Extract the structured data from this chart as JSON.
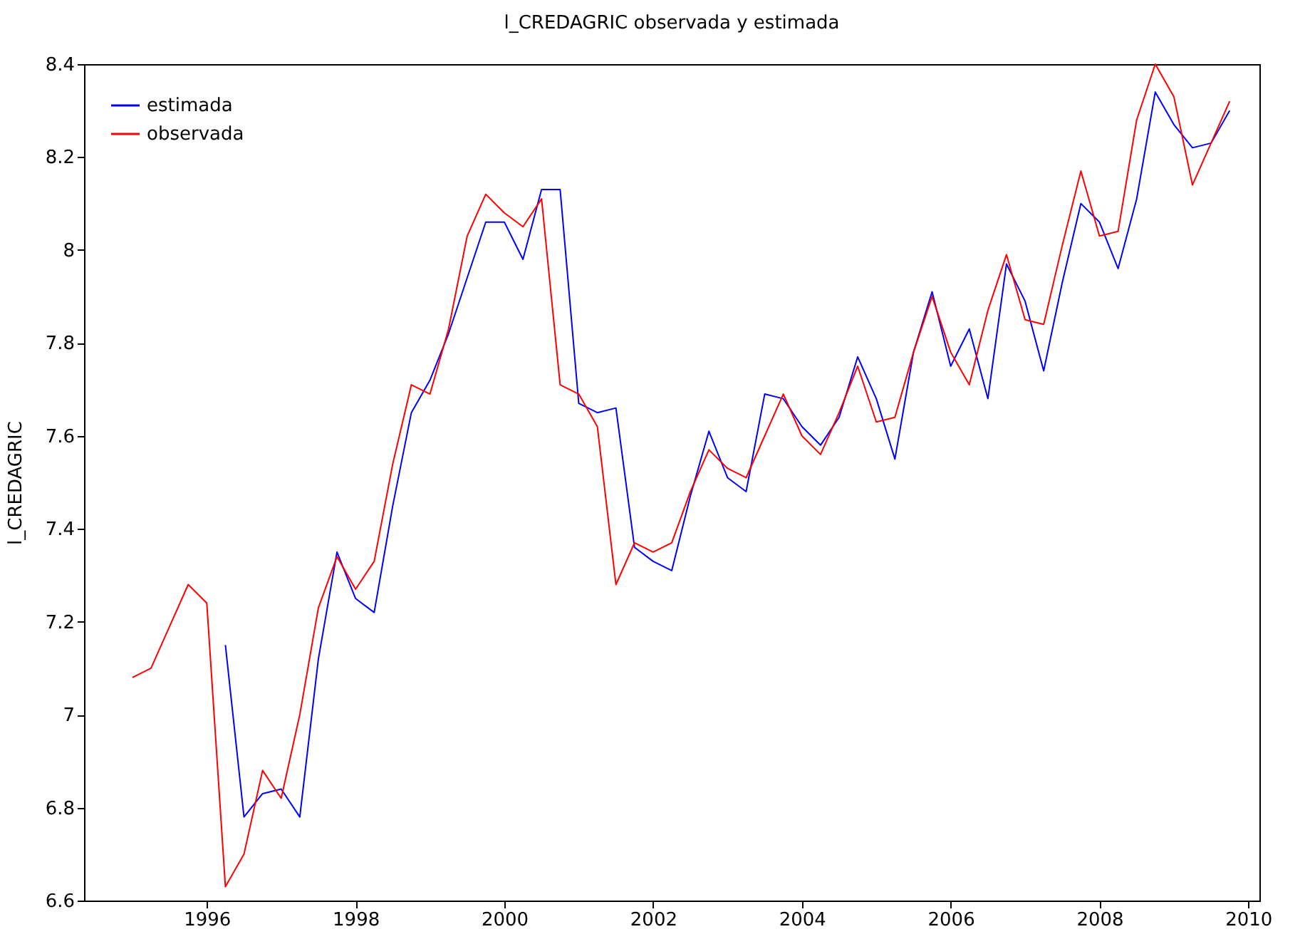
{
  "chart_data": {
    "type": "line",
    "title": "l_CREDAGRIC observada y estimada",
    "ylabel": "l_CREDAGRIC",
    "x": [
      1995,
      1995.25,
      1995.5,
      1995.75,
      1996,
      1996.25,
      1996.5,
      1996.75,
      1997,
      1997.25,
      1997.5,
      1997.75,
      1998,
      1998.25,
      1998.5,
      1998.75,
      1999,
      1999.25,
      1999.5,
      1999.75,
      2000,
      2000.25,
      2000.5,
      2000.75,
      2001,
      2001.25,
      2001.5,
      2001.75,
      2002,
      2002.25,
      2002.5,
      2002.75,
      2003,
      2003.25,
      2003.5,
      2003.75,
      2004,
      2004.25,
      2004.5,
      2004.75,
      2005,
      2005.25,
      2005.5,
      2005.75,
      2006,
      2006.25,
      2006.5,
      2006.75,
      2007,
      2007.25,
      2007.5,
      2007.75,
      2008,
      2008.25,
      2008.5,
      2008.75,
      2009,
      2009.25,
      2009.5,
      2009.75
    ],
    "series": [
      {
        "name": "estimada",
        "color": "#0000ff",
        "values": [
          null,
          null,
          null,
          null,
          null,
          7.15,
          6.78,
          6.83,
          6.84,
          6.78,
          7.12,
          7.35,
          7.25,
          7.22,
          7.45,
          7.65,
          7.72,
          7.82,
          7.94,
          8.06,
          8.06,
          7.98,
          8.13,
          8.13,
          7.67,
          7.65,
          7.66,
          7.36,
          7.33,
          7.31,
          7.47,
          7.61,
          7.51,
          7.48,
          7.69,
          7.68,
          7.62,
          7.58,
          7.64,
          7.77,
          7.68,
          7.55,
          7.78,
          7.91,
          7.75,
          7.83,
          7.68,
          7.97,
          7.89,
          7.74,
          7.93,
          8.1,
          8.06,
          7.96,
          8.11,
          8.34,
          8.27,
          8.22,
          8.23,
          8.3
        ]
      },
      {
        "name": "observada",
        "color": "#ff0000",
        "values": [
          7.08,
          7.1,
          7.19,
          7.28,
          7.24,
          6.63,
          6.7,
          6.88,
          6.82,
          7.0,
          7.23,
          7.34,
          7.27,
          7.33,
          7.54,
          7.71,
          7.69,
          7.83,
          8.03,
          8.12,
          8.08,
          8.05,
          8.11,
          7.71,
          7.69,
          7.62,
          7.28,
          7.37,
          7.35,
          7.37,
          7.48,
          7.57,
          7.53,
          7.51,
          7.6,
          7.69,
          7.6,
          7.56,
          7.65,
          7.75,
          7.63,
          7.64,
          7.78,
          7.9,
          7.78,
          7.71,
          7.87,
          7.99,
          7.85,
          7.84,
          8.01,
          8.17,
          8.03,
          8.04,
          8.28,
          8.4,
          8.33,
          8.14,
          8.23,
          8.32
        ]
      }
    ],
    "xlim": [
      1994.35,
      2010.15
    ],
    "xticks": [
      1996,
      1998,
      2000,
      2002,
      2004,
      2006,
      2008,
      2010
    ],
    "ylim": [
      6.6,
      8.4
    ],
    "yticks": [
      6.6,
      6.8,
      7,
      7.2,
      7.4,
      7.6,
      7.8,
      8,
      8.2,
      8.4
    ],
    "grid": false,
    "legend": "top left",
    "line_style": "solid",
    "marker": "none"
  }
}
